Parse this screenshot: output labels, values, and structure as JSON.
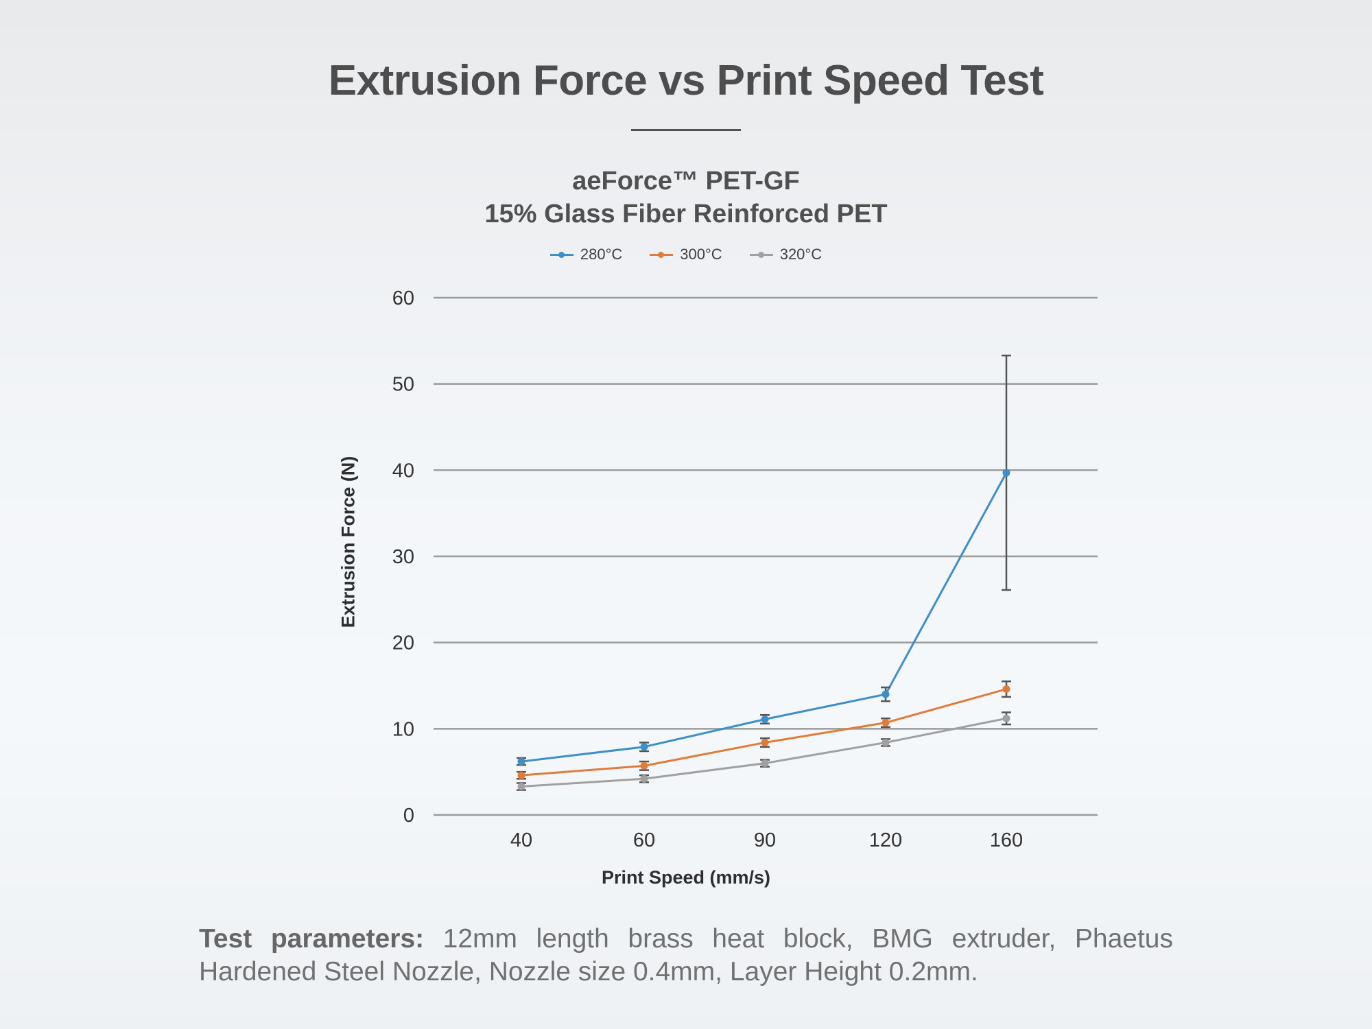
{
  "header": {
    "title": "Extrusion Force vs Print Speed Test"
  },
  "footnote": {
    "label": "Test parameters:",
    "text": " 12mm length brass heat block, BMG extruder, Phaetus Hardened Steel Nozzle, Nozzle size 0.4mm, Layer Height 0.2mm."
  },
  "chart_data": {
    "type": "line",
    "title_line1": "aeForce™ PET-GF",
    "title_line2": "15% Glass Fiber Reinforced PET",
    "xlabel": "Print Speed (mm/s)",
    "ylabel": "Extrusion Force (N)",
    "categories": [
      "40",
      "60",
      "90",
      "120",
      "160"
    ],
    "ylim": [
      0,
      60
    ],
    "yticks": [
      0,
      10,
      20,
      30,
      40,
      50,
      60
    ],
    "grid": true,
    "legend_position": "top-center",
    "series": [
      {
        "name": "280°C",
        "color": "#3d8fc9",
        "values": [
          6.2,
          7.9,
          11.1,
          14.0,
          39.7
        ],
        "errors": [
          0.4,
          0.5,
          0.5,
          0.8,
          13.6
        ]
      },
      {
        "name": "300°C",
        "color": "#e07b39",
        "values": [
          4.6,
          5.7,
          8.4,
          10.7,
          14.6
        ],
        "errors": [
          0.4,
          0.5,
          0.5,
          0.5,
          0.9
        ]
      },
      {
        "name": "320°C",
        "color": "#a0a0a0",
        "values": [
          3.3,
          4.2,
          6.0,
          8.4,
          11.2
        ],
        "errors": [
          0.4,
          0.4,
          0.4,
          0.4,
          0.7
        ]
      }
    ]
  }
}
